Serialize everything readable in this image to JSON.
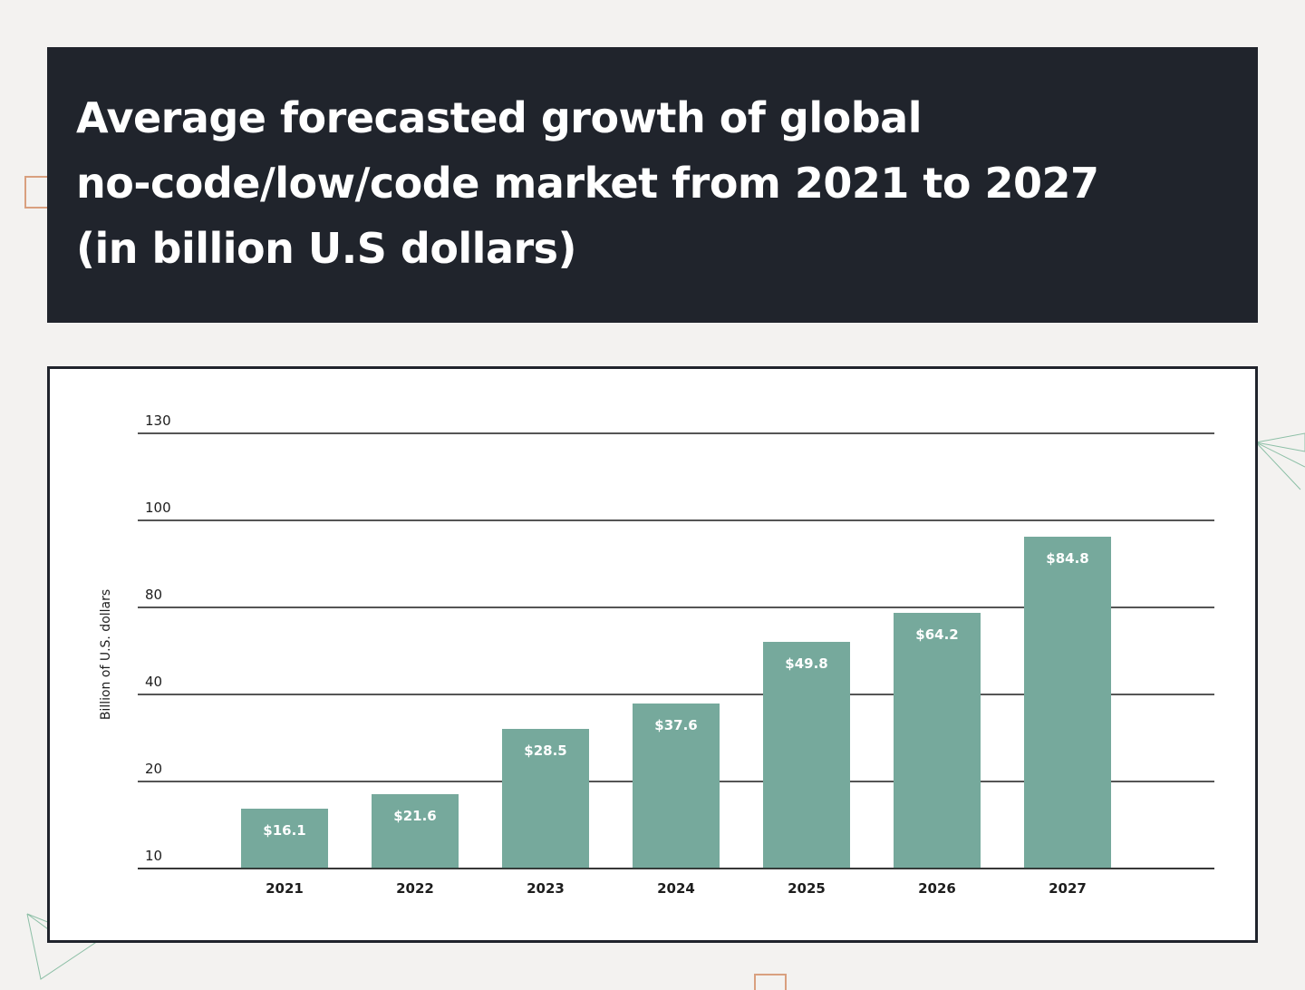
{
  "header": {
    "title_lines": [
      "Average forecasted growth of global",
      "no-code/low/code market from 2021 to 2027",
      "(in billion U.S dollars)"
    ]
  },
  "colors": {
    "bar": "#76a99c",
    "header_bg": "#20242c",
    "grid": "#1d1d1d",
    "accent_square": "#d9a07f",
    "accent_lines": "#8cbfa6"
  },
  "chart_data": {
    "type": "bar",
    "title": "Average forecasted growth of global no-code/low/code market from 2021 to 2027 (in billion U.S dollars)",
    "xlabel": "",
    "ylabel": "Billion of U.S. dollars",
    "y_ticks": [
      10,
      20,
      40,
      80,
      100,
      130
    ],
    "y_scale": "categorical-ticks (non-linear axis as printed)",
    "grid": true,
    "categories": [
      "2021",
      "2022",
      "2023",
      "2024",
      "2025",
      "2026",
      "2027"
    ],
    "values": [
      16.1,
      21.6,
      28.5,
      37.6,
      49.8,
      64.2,
      84.8
    ],
    "data_labels": [
      "$16.1",
      "$21.6",
      "$28.5",
      "$37.6",
      "$49.8",
      "$64.2",
      "$84.8"
    ]
  }
}
